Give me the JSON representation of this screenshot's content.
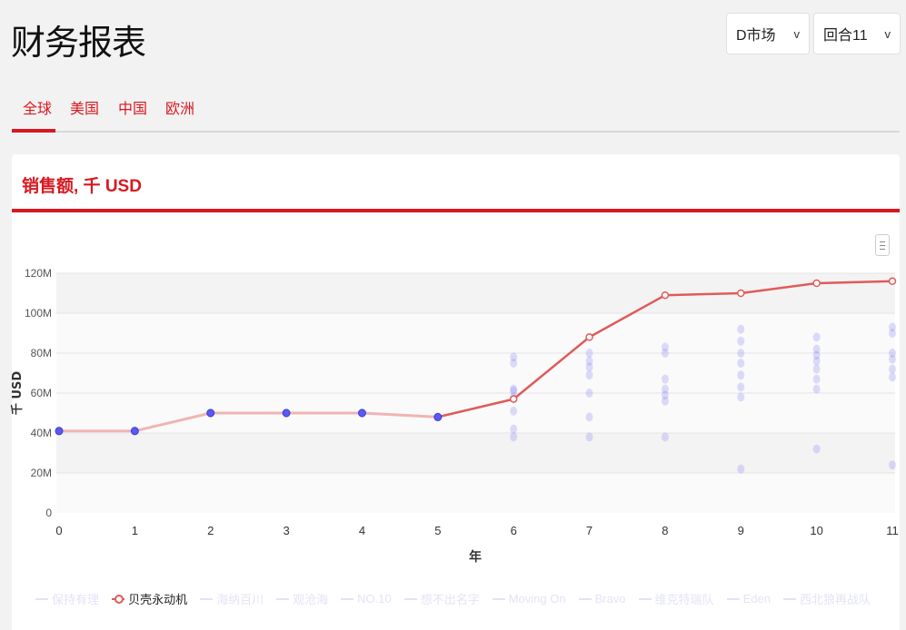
{
  "header": {
    "title": "财务报表",
    "market_select": "D市场",
    "round_select": "回合11"
  },
  "tabs": [
    {
      "label": "全球",
      "active": true
    },
    {
      "label": "美国"
    },
    {
      "label": "中国"
    },
    {
      "label": "欧洲"
    }
  ],
  "card": {
    "title": "销售额, 千 USD"
  },
  "colors": {
    "accent": "#d71920",
    "series": "#e05a5a",
    "other_points": "#7b7bf5"
  },
  "chart_data": {
    "type": "line",
    "xlabel": "年",
    "ylabel": "千 USD",
    "x": [
      0,
      1,
      2,
      3,
      4,
      5,
      6,
      7,
      8,
      9,
      10,
      11
    ],
    "ylim": [
      0,
      120
    ],
    "yticks": [
      "0",
      "20M",
      "40M",
      "60M",
      "80M",
      "100M",
      "120M"
    ],
    "ytick_values": [
      0,
      20,
      40,
      60,
      80,
      100,
      120
    ],
    "legend_position": "bottom",
    "legend": [
      "保持有理",
      "贝壳永动机",
      "海纳百川",
      "观沧海",
      "NO.10",
      "想不出名字",
      "Moving On",
      "Bravo",
      "维克特瑞队",
      "Eden",
      "西北狼再战队"
    ],
    "active_series": "贝壳永动机",
    "series": [
      {
        "name": "贝壳永动机",
        "values": [
          41,
          41,
          50,
          50,
          50,
          48,
          57,
          88,
          109,
          110,
          115,
          116
        ]
      }
    ],
    "faded_points": [
      {
        "x": 0,
        "values": [
          41
        ]
      },
      {
        "x": 1,
        "values": [
          41
        ]
      },
      {
        "x": 2,
        "values": [
          50
        ]
      },
      {
        "x": 3,
        "values": [
          50
        ]
      },
      {
        "x": 4,
        "values": [
          50
        ]
      },
      {
        "x": 5,
        "values": [
          48
        ]
      },
      {
        "x": 6,
        "values": [
          78,
          75,
          62,
          61,
          58,
          51,
          42,
          38
        ]
      },
      {
        "x": 7,
        "values": [
          80,
          76,
          73,
          69,
          60,
          48,
          38
        ]
      },
      {
        "x": 8,
        "values": [
          83,
          80,
          67,
          62,
          59,
          56,
          38
        ]
      },
      {
        "x": 9,
        "values": [
          92,
          86,
          80,
          75,
          69,
          63,
          58,
          22
        ]
      },
      {
        "x": 10,
        "values": [
          88,
          82,
          79,
          76,
          72,
          67,
          62,
          32
        ]
      },
      {
        "x": 11,
        "values": [
          93,
          90,
          80,
          77,
          72,
          68,
          24
        ]
      }
    ]
  }
}
